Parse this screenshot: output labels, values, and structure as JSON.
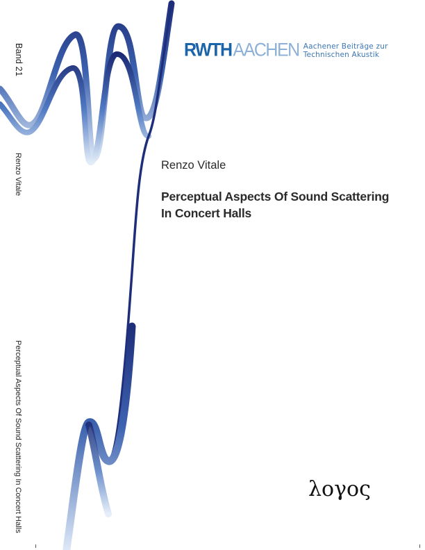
{
  "spine": {
    "volume": "Band 21",
    "author": "Renzo Vitale",
    "title": "Perceptual Aspects Of Sound Scattering In Concert Halls"
  },
  "series": {
    "logo_rwth": "RWTH",
    "logo_aachen": "AACHEN",
    "line1": "Aachener Beiträge zur",
    "line2": "Technischen Akustik"
  },
  "cover": {
    "author": "Renzo Vitale",
    "title_line1": "Perceptual Aspects Of Sound Scattering",
    "title_line2": "In Concert Halls"
  },
  "publisher": "λογος",
  "colors": {
    "wave_dark": "#1f2e7a",
    "wave_light": "#dbe7f6",
    "rwth_blue": "#1b64a9",
    "aachen_blue": "#8db0d6"
  }
}
